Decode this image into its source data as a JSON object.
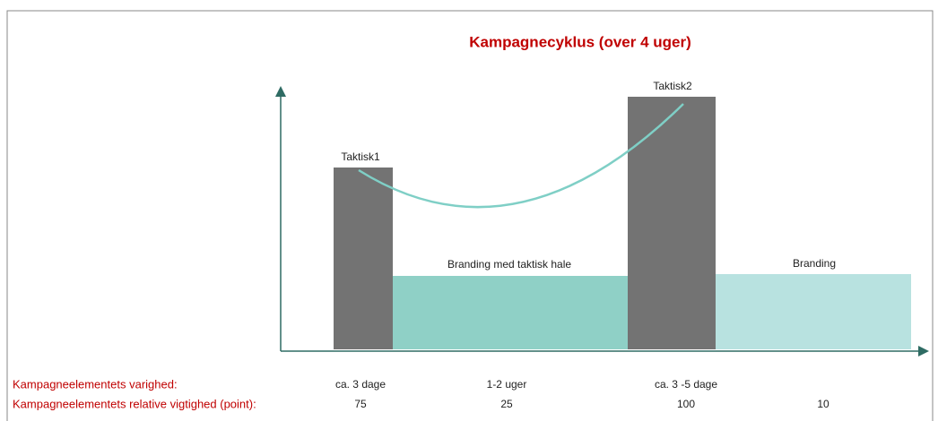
{
  "title": "Kampagnecyklus (over 4 uger)",
  "row_labels": {
    "duration": "Kampagneelementets varighed:",
    "importance": "Kampagneelementets relative vigtighed (point):"
  },
  "elements": [
    {
      "label": "Taktisk1",
      "duration": "ca. 3 dage",
      "importance": 75
    },
    {
      "label": "Branding med taktisk hale",
      "duration": "1-2 uger",
      "importance": 25
    },
    {
      "label": "Taktisk2",
      "duration": "ca. 3 -5 dage",
      "importance": 100
    },
    {
      "label": "Branding",
      "duration": null,
      "importance": 10
    }
  ]
}
